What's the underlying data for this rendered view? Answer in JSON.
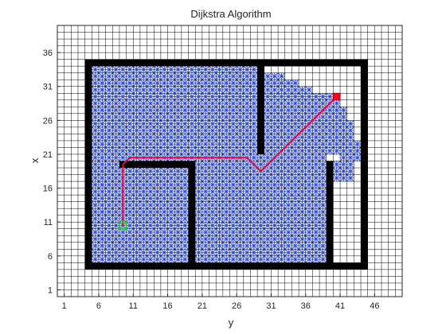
{
  "chart_data": {
    "type": "heatmap",
    "title": "Dijkstra Algorithm",
    "xlabel": "y",
    "ylabel": "x",
    "xlim": [
      0,
      50
    ],
    "ylim": [
      0,
      40
    ],
    "xticks": [
      1,
      6,
      11,
      16,
      21,
      26,
      31,
      36,
      41,
      46
    ],
    "yticks": [
      1,
      6,
      11,
      16,
      21,
      26,
      31,
      36
    ],
    "grid": true,
    "colors": {
      "grid": "#000000",
      "wall": "#000000",
      "explored": "#1f3fd0",
      "path": "#e8004a",
      "start": "#22cc22",
      "goal": "#ff0022"
    },
    "walls": [
      {
        "x0": 4,
        "x1": 45,
        "y0": 4,
        "y1": 5
      },
      {
        "x0": 4,
        "x1": 45,
        "y0": 34,
        "y1": 35
      },
      {
        "x0": 4,
        "x1": 5,
        "y0": 4,
        "y1": 35
      },
      {
        "x0": 44,
        "x1": 45,
        "y0": 4,
        "y1": 35
      },
      {
        "x0": 29,
        "x1": 30,
        "y0": 21,
        "y1": 34
      },
      {
        "x0": 9,
        "x1": 20,
        "y0": 19,
        "y1": 20
      },
      {
        "x0": 19,
        "x1": 20,
        "y0": 5,
        "y1": 19
      },
      {
        "x0": 39,
        "x1": 40,
        "y0": 5,
        "y1": 20
      }
    ],
    "explored_regions": [
      {
        "x0": 5,
        "x1": 29,
        "y0": 5,
        "y1": 34
      },
      {
        "x0": 29,
        "x1": 39,
        "y0": 5,
        "y1": 21
      },
      {
        "x0": 30,
        "x1": 33,
        "y0": 21,
        "y1": 33
      },
      {
        "x0": 33,
        "x1": 35,
        "y0": 21,
        "y1": 32
      },
      {
        "x0": 35,
        "x1": 37,
        "y0": 21,
        "y1": 31
      },
      {
        "x0": 37,
        "x1": 40,
        "y0": 21,
        "y1": 30
      },
      {
        "x0": 40,
        "x1": 41,
        "y0": 21,
        "y1": 29
      },
      {
        "x0": 41,
        "x1": 42,
        "y0": 20,
        "y1": 28
      },
      {
        "x0": 42,
        "x1": 43,
        "y0": 20,
        "y1": 26
      },
      {
        "x0": 43,
        "x1": 44,
        "y0": 20,
        "y1": 23
      },
      {
        "x0": 40,
        "x1": 43,
        "y0": 17,
        "y1": 20
      }
    ],
    "path": [
      [
        9.5,
        10.5
      ],
      [
        9.5,
        19.5
      ],
      [
        10.5,
        20.5
      ],
      [
        27.5,
        20.5
      ],
      [
        29.5,
        18.5
      ],
      [
        31.5,
        20.5
      ],
      [
        39.5,
        28.5
      ],
      [
        40.5,
        29.5
      ]
    ],
    "start": [
      9.5,
      10.5
    ],
    "goal": [
      40.5,
      29.5
    ]
  }
}
